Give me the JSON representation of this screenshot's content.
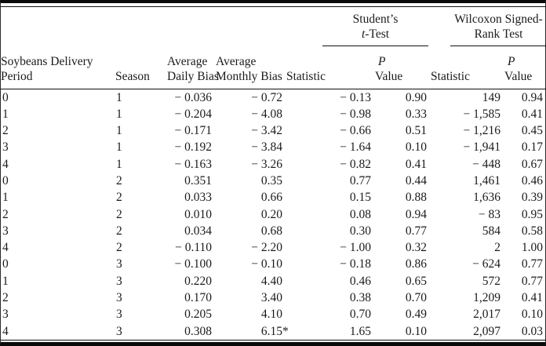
{
  "colors": {
    "background": "#ffffff",
    "rule": "#111111",
    "text": "#1b1b1b"
  },
  "table": {
    "spanners": [
      {
        "line1": "Student’s",
        "line2_italic": "t",
        "line2_rest": "-Test"
      },
      {
        "line1": "Wilcoxon Signed-",
        "line2": "Rank Test"
      }
    ],
    "columns": [
      {
        "key": "delivery_period",
        "label_line1": "Soybeans Delivery",
        "label_line2": "Period"
      },
      {
        "key": "season",
        "label": "Season"
      },
      {
        "key": "avg_daily_bias",
        "label_line1": "Average",
        "label_line2": "Daily Bias"
      },
      {
        "key": "avg_monthly_bias",
        "label_line1": "Average",
        "label_line2": "Monthly Bias"
      },
      {
        "key": "t_statistic",
        "label": "Statistic"
      },
      {
        "key": "t_p_value",
        "label_line1": "P",
        "label_line2": "Value"
      },
      {
        "key": "w_statistic",
        "label": "Statistic"
      },
      {
        "key": "w_p_value",
        "label_line1": "P",
        "label_line2": "Value"
      }
    ],
    "rows": [
      [
        "0",
        "1",
        "− 0.036",
        "− 0.72",
        "− 0.13",
        "0.90",
        "149",
        "0.94"
      ],
      [
        "1",
        "1",
        "− 0.204",
        "− 4.08",
        "− 0.98",
        "0.33",
        "− 1,585",
        "0.41"
      ],
      [
        "2",
        "1",
        "− 0.171",
        "− 3.42",
        "− 0.66",
        "0.51",
        "− 1,216",
        "0.45"
      ],
      [
        "3",
        "1",
        "− 0.192",
        "− 3.84",
        "− 1.64",
        "0.10",
        "− 1,941",
        "0.17"
      ],
      [
        "4",
        "1",
        "− 0.163",
        "− 3.26",
        "− 0.82",
        "0.41",
        "− 448",
        "0.67"
      ],
      [
        "0",
        "2",
        "0.351",
        "0.35",
        "0.77",
        "0.44",
        "1,461",
        "0.46"
      ],
      [
        "1",
        "2",
        "0.033",
        "0.66",
        "0.15",
        "0.88",
        "1,636",
        "0.39"
      ],
      [
        "2",
        "2",
        "0.010",
        "0.20",
        "0.08",
        "0.94",
        "− 83",
        "0.95"
      ],
      [
        "3",
        "2",
        "0.034",
        "0.68",
        "0.30",
        "0.77",
        "584",
        "0.58"
      ],
      [
        "4",
        "2",
        "− 0.110",
        "− 2.20",
        "− 1.00",
        "0.32",
        "2",
        "1.00"
      ],
      [
        "0",
        "3",
        "− 0.100",
        "− 0.10",
        "− 0.18",
        "0.86",
        "− 624",
        "0.77"
      ],
      [
        "1",
        "3",
        "0.220",
        "4.40",
        "0.46",
        "0.65",
        "572",
        "0.77"
      ],
      [
        "2",
        "3",
        "0.170",
        "3.40",
        "0.38",
        "0.70",
        "1,209",
        "0.41"
      ],
      [
        "3",
        "3",
        "0.205",
        "4.10",
        "0.70",
        "0.49",
        "2,017",
        "0.10"
      ],
      [
        "4",
        "3",
        "0.308",
        "6.15*",
        "1.65",
        "0.10",
        "2,097",
        "0.03"
      ]
    ]
  }
}
